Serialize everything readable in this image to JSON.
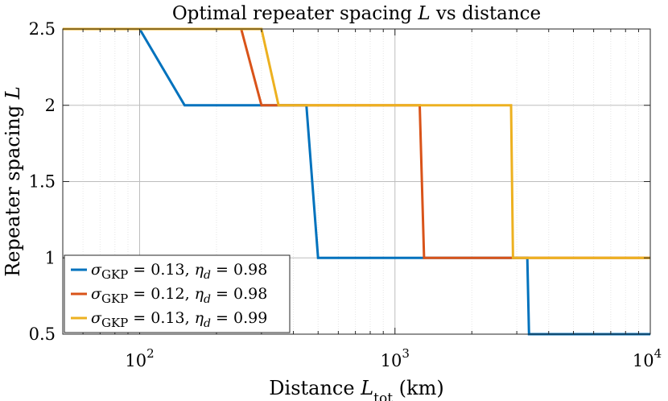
{
  "chart_data": {
    "type": "line",
    "title": "Optimal repeater spacing L vs distance",
    "xlabel": "Distance L_tot (km)",
    "ylabel": "Repeater spacing L",
    "xscale": "log",
    "xlim": [
      50,
      10000
    ],
    "ylim": [
      0.5,
      2.5
    ],
    "grid": true,
    "x_ticks": [
      {
        "value": 100,
        "base": "10",
        "exp": "2"
      },
      {
        "value": 1000,
        "base": "10",
        "exp": "3"
      },
      {
        "value": 10000,
        "base": "10",
        "exp": "4"
      }
    ],
    "y_ticks": [
      {
        "value": 0.5,
        "label": "0.5"
      },
      {
        "value": 1,
        "label": "1"
      },
      {
        "value": 1.5,
        "label": "1.5"
      },
      {
        "value": 2,
        "label": "2"
      },
      {
        "value": 2.5,
        "label": "2.5"
      }
    ],
    "legend_position": "bottom-left",
    "series": [
      {
        "name": "σ_GKP = 0.13, η_d = 0.98",
        "sigma": "0.13",
        "eta": "0.98",
        "color": "#0072BD",
        "x": [
          50,
          100,
          150,
          450,
          500,
          3300,
          3350,
          10000
        ],
        "y": [
          2.5,
          2.5,
          2,
          2,
          1,
          1,
          0.5,
          0.5
        ]
      },
      {
        "name": "σ_GKP = 0.12, η_d = 0.98",
        "sigma": "0.12",
        "eta": "0.98",
        "color": "#D95319",
        "x": [
          50,
          250,
          300,
          1250,
          1300,
          10000
        ],
        "y": [
          2.5,
          2.5,
          2,
          2,
          1,
          1
        ]
      },
      {
        "name": "σ_GKP = 0.13, η_d = 0.99",
        "sigma": "0.13",
        "eta": "0.99",
        "color": "#EDB120",
        "x": [
          50,
          300,
          350,
          2850,
          2900,
          10000
        ],
        "y": [
          2.5,
          2.5,
          2,
          2,
          1,
          1
        ]
      }
    ]
  }
}
